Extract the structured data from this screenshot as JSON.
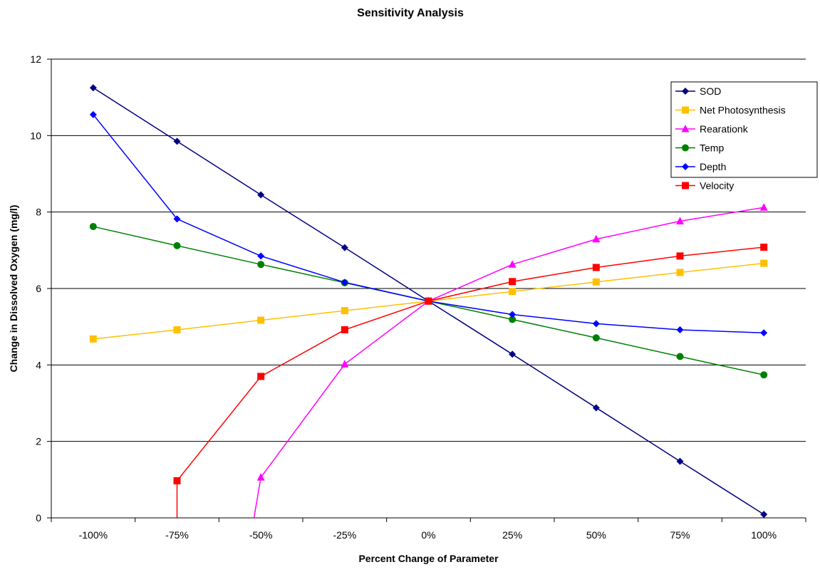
{
  "chart_data": {
    "type": "line",
    "title": "Sensitivity Analysis",
    "xlabel": "Percent Change of Parameter",
    "ylabel": "Change in Dissolved Oxygen (mg/l)",
    "categories": [
      "-100%",
      "-75%",
      "-50%",
      "-25%",
      "0%",
      "25%",
      "50%",
      "75%",
      "100%"
    ],
    "x": [
      -100,
      -75,
      -50,
      -25,
      0,
      25,
      50,
      75,
      100
    ],
    "ylim": [
      0,
      12
    ],
    "yticks": [
      0,
      2,
      4,
      6,
      8,
      10,
      12
    ],
    "grid": "horizontal major gridlines",
    "legend_position": "top-right",
    "series": [
      {
        "name": "SOD",
        "color": "#000080",
        "marker": "diamond",
        "values": [
          11.25,
          9.85,
          8.45,
          7.07,
          5.67,
          4.28,
          2.88,
          1.48,
          0.09
        ]
      },
      {
        "name": "Net Photosynthesis",
        "color": "#FFC000",
        "marker": "square",
        "values": [
          4.68,
          4.92,
          5.17,
          5.42,
          5.67,
          5.92,
          6.17,
          6.42,
          6.66
        ]
      },
      {
        "name": "Rearationk",
        "color": "#FF00FF",
        "marker": "triangle",
        "values": [
          null,
          null,
          1.06,
          4.02,
          5.67,
          6.63,
          7.29,
          7.76,
          8.12
        ],
        "extra_points": [
          [
            -53,
            -0.5
          ]
        ]
      },
      {
        "name": "Temp",
        "color": "#008000",
        "marker": "circle",
        "values": [
          7.62,
          7.12,
          6.63,
          6.15,
          5.67,
          5.19,
          4.71,
          4.22,
          3.74
        ]
      },
      {
        "name": "Depth",
        "color": "#0000FF",
        "marker": "diamond",
        "values": [
          10.55,
          7.82,
          6.85,
          6.16,
          5.67,
          5.32,
          5.08,
          4.92,
          4.84
        ]
      },
      {
        "name": "Velocity",
        "color": "#FF0000",
        "marker": "square",
        "values": [
          null,
          0.97,
          3.7,
          4.92,
          5.67,
          6.18,
          6.55,
          6.85,
          7.08
        ],
        "extra_points": [
          [
            -75,
            -0.5
          ]
        ]
      }
    ]
  }
}
